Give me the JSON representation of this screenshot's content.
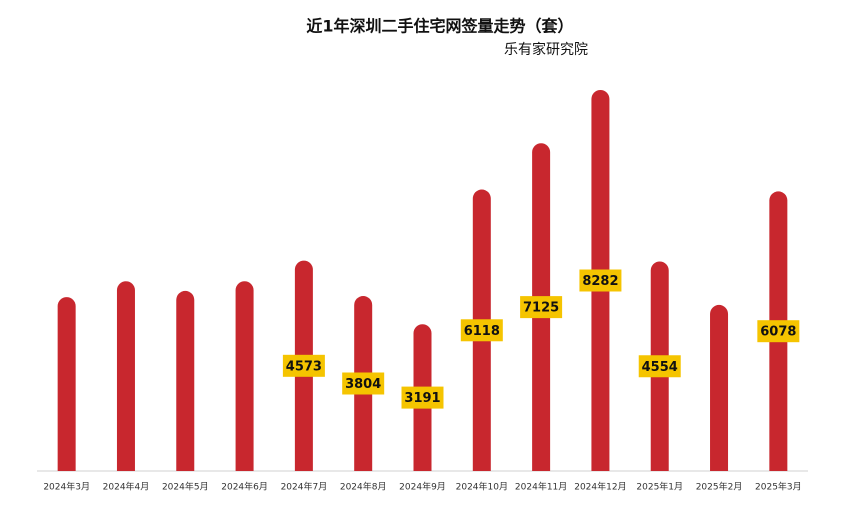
{
  "chart_data": {
    "type": "bar",
    "title": "近1年深圳二手住宅网签量走势（套）",
    "subtitle": "乐有家研究院",
    "categories": [
      "2024年3月",
      "2024年4月",
      "2024年5月",
      "2024年6月",
      "2024年7月",
      "2024年8月",
      "2024年9月",
      "2024年10月",
      "2024年11月",
      "2024年12月",
      "2025年1月",
      "2025年2月",
      "2025年3月"
    ],
    "values": [
      3780,
      4125,
      3915,
      4125,
      4573,
      3804,
      3191,
      6118,
      7125,
      8282,
      4554,
      3610,
      6078
    ],
    "value_labels": [
      null,
      null,
      null,
      null,
      "4573",
      "3804",
      "3191",
      "6118",
      "7125",
      "8282",
      "4554",
      null,
      "6078"
    ],
    "color": "#c8272e",
    "label_color": "#f5c400"
  }
}
